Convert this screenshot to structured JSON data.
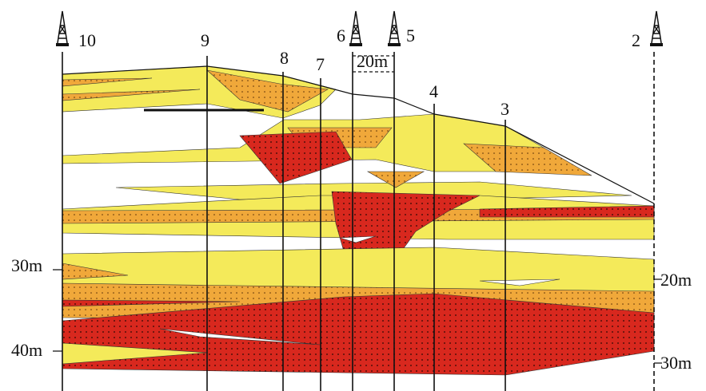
{
  "wells": [
    {
      "label": "10"
    },
    {
      "label": "9"
    },
    {
      "label": "8"
    },
    {
      "label": "7"
    },
    {
      "label": "6"
    },
    {
      "label": "5"
    },
    {
      "label": "4"
    },
    {
      "label": "3"
    },
    {
      "label": "2"
    }
  ],
  "scale_bar": "20m",
  "left_depths": [
    "30m",
    "40m"
  ],
  "right_depths": [
    "20m",
    "30m"
  ]
}
